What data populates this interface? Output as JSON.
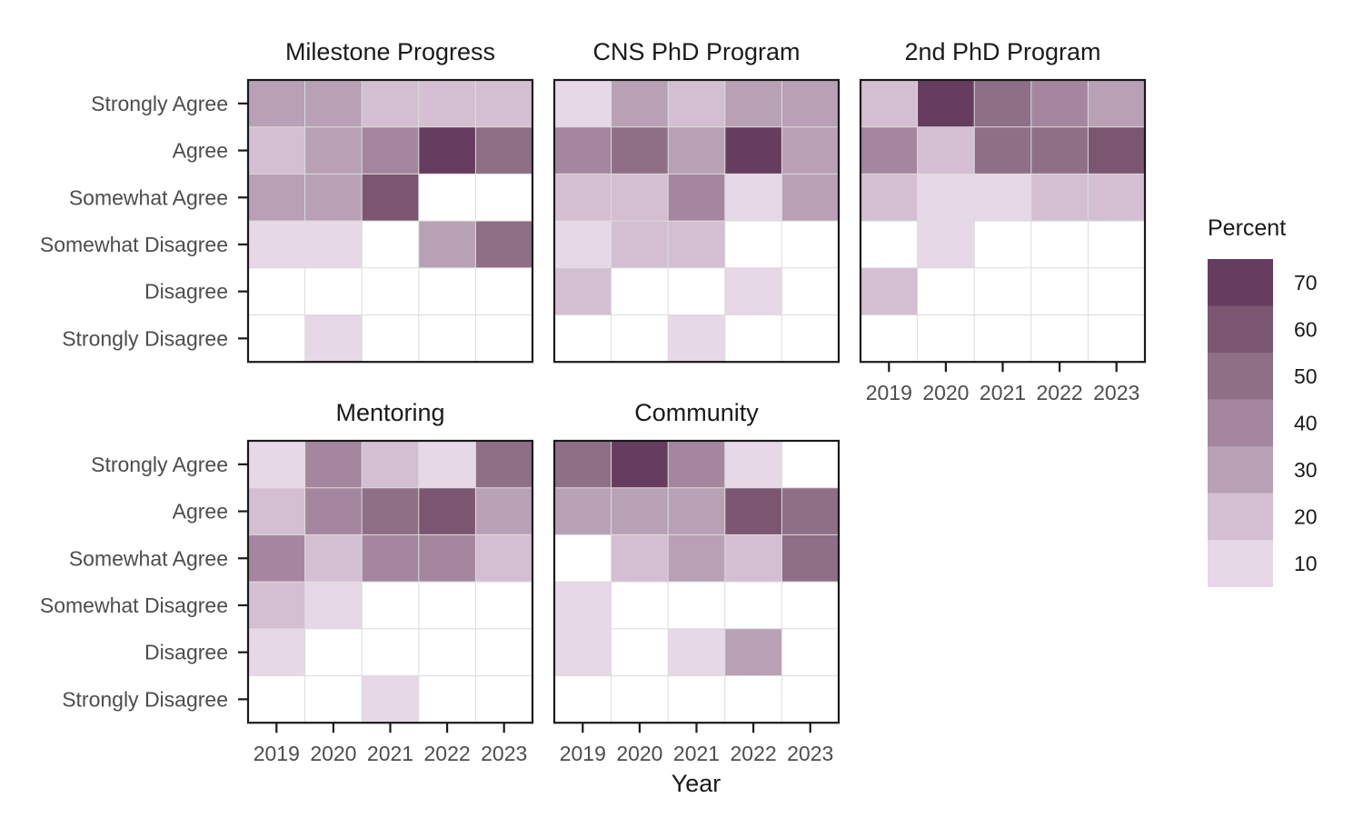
{
  "chart_data": {
    "type": "heatmap",
    "xlabel": "Year",
    "ylabel": "",
    "years": [
      "2019",
      "2020",
      "2021",
      "2022",
      "2023"
    ],
    "responses": [
      "Strongly Agree",
      "Agree",
      "Somewhat Agree",
      "Somewhat Disagree",
      "Disagree",
      "Strongly Disagree"
    ],
    "legend": {
      "title": "Percent",
      "ticks": [
        70,
        60,
        50,
        40,
        30,
        20,
        10
      ],
      "tick_labels": [
        "70",
        "60",
        "50",
        "40",
        "30",
        "20",
        "10"
      ],
      "bins": [
        {
          "min": 65,
          "max": 75,
          "color": "#663d5f"
        },
        {
          "min": 55,
          "max": 65,
          "color": "#7a5670"
        },
        {
          "min": 45,
          "max": 55,
          "color": "#8e6f86"
        },
        {
          "min": 35,
          "max": 45,
          "color": "#a4879f"
        },
        {
          "min": 25,
          "max": 35,
          "color": "#b8a1b5"
        },
        {
          "min": 15,
          "max": 25,
          "color": "#d3bfd1"
        },
        {
          "min": 5,
          "max": 15,
          "color": "#e6d8e6"
        }
      ]
    },
    "panels": [
      {
        "title": "Milestone Progress",
        "values": [
          [
            30,
            30,
            20,
            20,
            20
          ],
          [
            20,
            30,
            40,
            70,
            50
          ],
          [
            30,
            30,
            60,
            0,
            0
          ],
          [
            10,
            10,
            0,
            30,
            50
          ],
          [
            0,
            0,
            0,
            0,
            0
          ],
          [
            0,
            10,
            0,
            0,
            0
          ]
        ]
      },
      {
        "title": "CNS PhD Program",
        "values": [
          [
            10,
            30,
            20,
            30,
            30
          ],
          [
            40,
            50,
            30,
            70,
            30
          ],
          [
            20,
            20,
            40,
            10,
            30
          ],
          [
            10,
            20,
            20,
            0,
            0
          ],
          [
            20,
            0,
            0,
            10,
            0
          ],
          [
            0,
            0,
            10,
            0,
            0
          ]
        ]
      },
      {
        "title": "2nd PhD Program",
        "values": [
          [
            20,
            70,
            50,
            40,
            30
          ],
          [
            40,
            20,
            50,
            50,
            60
          ],
          [
            20,
            10,
            10,
            20,
            20
          ],
          [
            0,
            10,
            0,
            0,
            0
          ],
          [
            20,
            0,
            0,
            0,
            0
          ],
          [
            0,
            0,
            0,
            0,
            0
          ]
        ]
      },
      {
        "title": "Mentoring",
        "values": [
          [
            10,
            40,
            20,
            10,
            50
          ],
          [
            20,
            40,
            50,
            60,
            30
          ],
          [
            40,
            20,
            40,
            40,
            20
          ],
          [
            20,
            10,
            0,
            0,
            0
          ],
          [
            10,
            0,
            0,
            0,
            0
          ],
          [
            0,
            0,
            10,
            0,
            0
          ]
        ]
      },
      {
        "title": "Community",
        "values": [
          [
            50,
            70,
            40,
            10,
            0
          ],
          [
            30,
            30,
            30,
            60,
            50
          ],
          [
            0,
            20,
            30,
            20,
            50
          ],
          [
            10,
            0,
            0,
            0,
            0
          ],
          [
            10,
            0,
            10,
            30,
            0
          ],
          [
            0,
            0,
            0,
            0,
            0
          ]
        ]
      }
    ]
  }
}
